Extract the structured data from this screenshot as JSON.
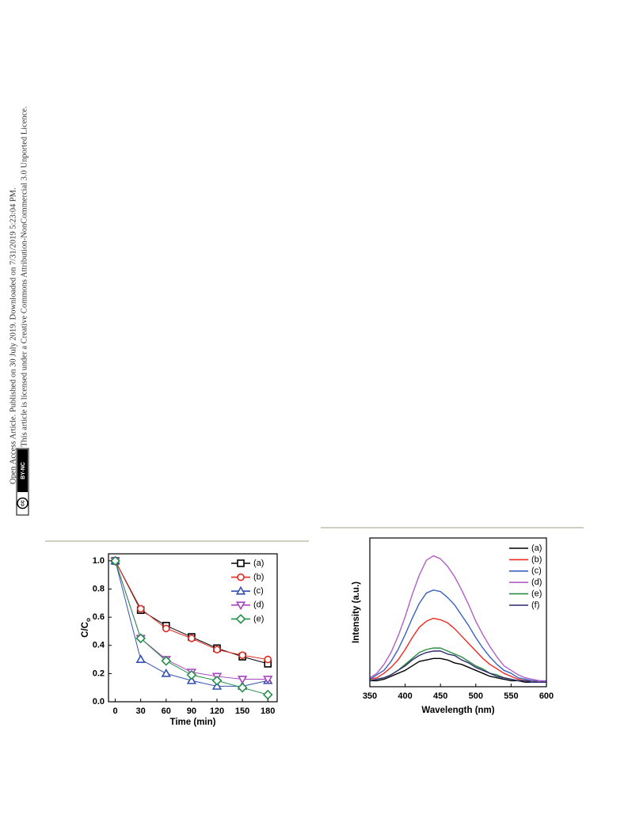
{
  "sidebar": {
    "line1": "Open Access Article. Published on 30 July 2019. Downloaded on 7/31/2019 5:23:04 PM.",
    "line2": "This article is licensed under a Creative Commons Attribution-NonCommercial 3.0 Unported Licence.",
    "badge_icon": "cc",
    "badge_text": "BY-NC"
  },
  "chart_data": [
    {
      "type": "line",
      "xlabel": "Time (min)",
      "ylabel": "C/C",
      "ylabel_subscript": "o",
      "x": [
        0,
        30,
        60,
        90,
        120,
        150,
        180
      ],
      "xlim": [
        -8,
        191
      ],
      "ylim": [
        0,
        1.05
      ],
      "xticks": [
        0,
        30,
        60,
        90,
        120,
        150,
        180
      ],
      "yticks": [
        {
          "value": 0,
          "label": "0.0"
        },
        0.2,
        0.4,
        0.6,
        0.8,
        {
          "value": 1,
          "label": "1.0"
        }
      ],
      "series": [
        {
          "name": "(a)",
          "color": "#000000",
          "marker": "square",
          "values": [
            1,
            0.65,
            0.54,
            0.46,
            0.38,
            0.32,
            0.27
          ]
        },
        {
          "name": "(b)",
          "color": "#e02a20",
          "marker": "circle",
          "values": [
            1,
            0.66,
            0.52,
            0.45,
            0.37,
            0.33,
            0.3
          ]
        },
        {
          "name": "(c)",
          "color": "#3552b0",
          "marker": "triangle-up",
          "values": [
            1,
            0.3,
            0.2,
            0.15,
            0.11,
            0.11,
            0.15
          ]
        },
        {
          "name": "(d)",
          "color": "#a845c0",
          "marker": "triangle-down",
          "values": [
            1,
            0.45,
            0.3,
            0.21,
            0.18,
            0.16,
            0.16
          ]
        },
        {
          "name": "(e)",
          "color": "#24904a",
          "marker": "diamond",
          "values": [
            1,
            0.45,
            0.29,
            0.19,
            0.15,
            0.1,
            0.05
          ]
        }
      ]
    },
    {
      "type": "line",
      "xlabel": "Wavelength (nm)",
      "ylabel": "Intensity (a.u.)",
      "x": [
        350,
        360,
        370,
        380,
        390,
        400,
        410,
        420,
        430,
        440,
        450,
        460,
        470,
        480,
        490,
        500,
        510,
        520,
        530,
        540,
        550,
        560,
        570,
        580,
        590,
        600
      ],
      "xlim": [
        350,
        600
      ],
      "ylim": [
        0,
        100
      ],
      "xticks": [
        350,
        400,
        450,
        500,
        550,
        600
      ],
      "series": [
        {
          "name": "(a)",
          "color": "#000000",
          "values": [
            4,
            4,
            5,
            7,
            9,
            11,
            14,
            17,
            18,
            19,
            19,
            18,
            16,
            15,
            13,
            11,
            9,
            7,
            6,
            5,
            4,
            4,
            3,
            3,
            3,
            3
          ]
        },
        {
          "name": "(b)",
          "color": "#ee2a22",
          "values": [
            5,
            6,
            9,
            13,
            18,
            25,
            33,
            40,
            44,
            46,
            45,
            43,
            39,
            34,
            29,
            24,
            19,
            15,
            12,
            9,
            7,
            5,
            4,
            4,
            3,
            3
          ]
        },
        {
          "name": "(c)",
          "color": "#3a62c0",
          "values": [
            5,
            8,
            11,
            17,
            25,
            35,
            46,
            56,
            63,
            65,
            64,
            60,
            55,
            48,
            41,
            33,
            26,
            20,
            15,
            11,
            9,
            6,
            5,
            4,
            4,
            3
          ]
        },
        {
          "name": "(d)",
          "color": "#b25ec4",
          "values": [
            6,
            9,
            15,
            23,
            34,
            47,
            62,
            75,
            85,
            88,
            86,
            81,
            74,
            65,
            55,
            44,
            35,
            27,
            20,
            14,
            11,
            8,
            6,
            5,
            4,
            4
          ]
        },
        {
          "name": "(e)",
          "color": "#2a8c40",
          "values": [
            4,
            5,
            6,
            8,
            11,
            15,
            19,
            23,
            25,
            26,
            26,
            24,
            22,
            20,
            17,
            14,
            12,
            9,
            8,
            6,
            5,
            4,
            4,
            3,
            3,
            3
          ]
        },
        {
          "name": "(f)",
          "color": "#2c2a72",
          "values": [
            4,
            5,
            6,
            8,
            11,
            14,
            18,
            21,
            23,
            24,
            24,
            22,
            21,
            18,
            16,
            13,
            11,
            9,
            7,
            6,
            5,
            4,
            4,
            3,
            3,
            3
          ]
        }
      ]
    }
  ]
}
